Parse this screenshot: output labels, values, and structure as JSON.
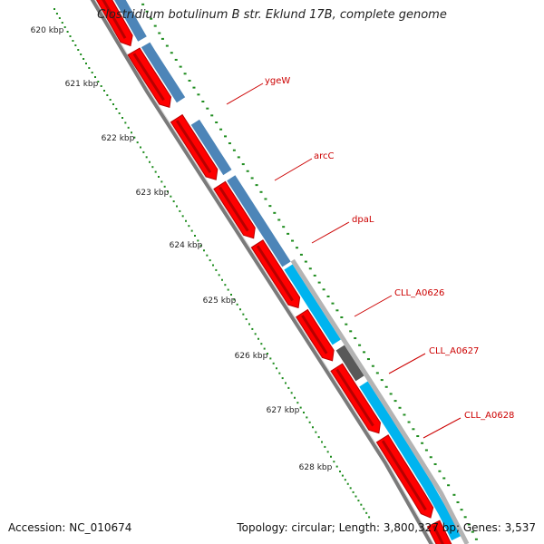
{
  "title": "Clostridium botulinum B str. Eklund 17B, complete genome",
  "accession": "Accession: NC_010674",
  "summary": "Topology: circular; Length: 3,800,327 bp; Genes: 3,537",
  "ticks": [
    "620 kbp",
    "621 kbp",
    "622 kbp",
    "623 kbp",
    "624 kbp",
    "625 kbp",
    "626 kbp",
    "627 kbp",
    "628 kbp"
  ],
  "gene_labels": [
    "ygeW",
    "arcC",
    "dpaL",
    "CLL_A0626",
    "CLL_A0627",
    "CLL_A0628"
  ],
  "colors": {
    "gene_red": "#ff0000",
    "gene_dark_red": "#b80000",
    "track_blue": "#4d85b8",
    "track_cyan": "#00b4ef",
    "track_dark_gray": "#595959",
    "track_light_gray": "#b4b4b4",
    "backbone": "#7a7a7a",
    "gc_green": "#1e8c1e",
    "label_red": "#cc0000"
  }
}
